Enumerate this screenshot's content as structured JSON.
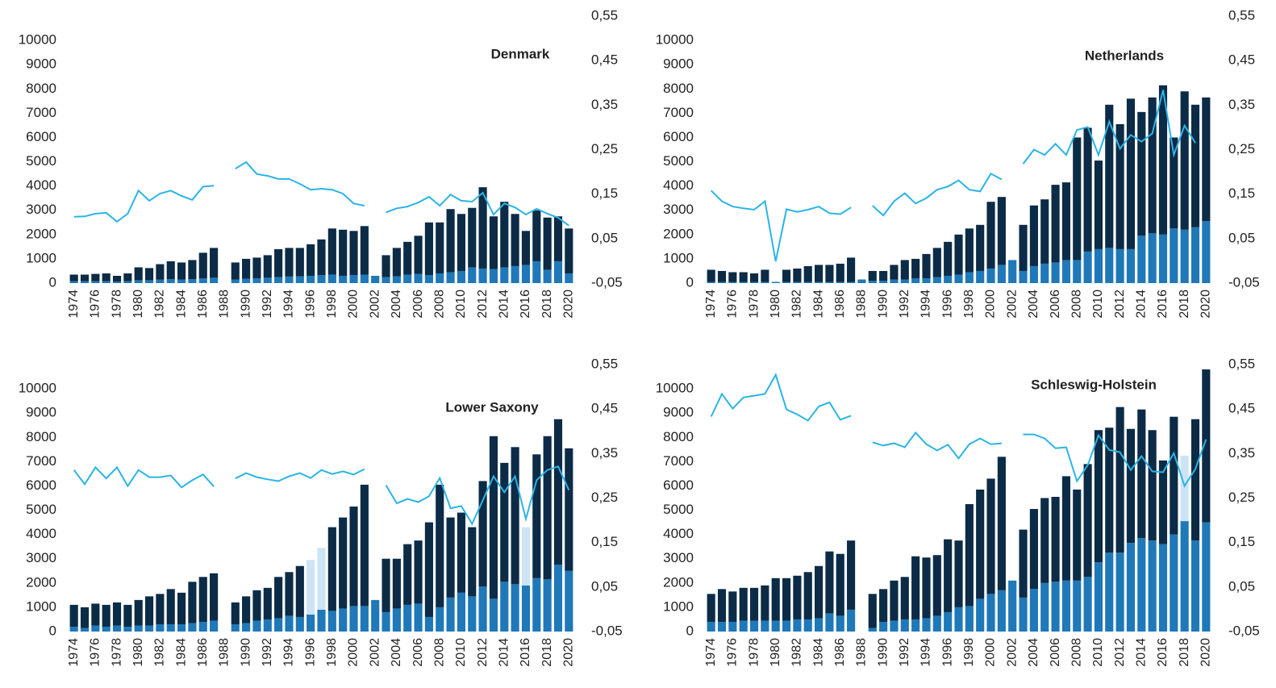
{
  "chart_data": [
    {
      "type": "bar",
      "title": "Denmark",
      "categories": [
        "1974",
        null,
        "1976",
        null,
        "1978",
        null,
        "1980",
        null,
        "1982",
        null,
        "1984",
        null,
        "1986",
        null,
        "1988",
        null,
        "1990",
        null,
        "1992",
        null,
        "1994",
        null,
        "1996",
        null,
        "1998",
        null,
        "2000",
        null,
        "2002",
        null,
        "2004",
        null,
        "2006",
        null,
        "2008",
        null,
        "2010",
        null,
        "2012",
        null,
        "2014",
        null,
        "2016",
        null,
        "2018",
        null,
        "2020"
      ],
      "ylim": [
        0,
        11000
      ],
      "yticks": [
        0,
        1000,
        2000,
        3000,
        4000,
        5000,
        6000,
        7000,
        8000,
        9000,
        10000
      ],
      "y2lim": [
        -0.05,
        0.55
      ],
      "y2ticks": [
        {
          "value": -0.05,
          "label": "-0,05"
        },
        {
          "value": 0.05,
          "label": "0,05"
        },
        {
          "value": 0.15,
          "label": "0,15"
        },
        {
          "value": 0.25,
          "label": "0,25"
        },
        {
          "value": 0.35,
          "label": "0,35"
        },
        {
          "value": 0.45,
          "label": "0,45"
        },
        {
          "value": 0.55,
          "label": "0,55"
        }
      ],
      "series": [
        {
          "color": "#1f78b8",
          "values": [
            80,
            80,
            80,
            80,
            60,
            80,
            120,
            120,
            140,
            160,
            150,
            160,
            200,
            220,
            null,
            150,
            180,
            200,
            220,
            250,
            270,
            280,
            300,
            330,
            350,
            300,
            330,
            350,
            300,
            250,
            280,
            350,
            380,
            330,
            400,
            450,
            500,
            650,
            600,
            580,
            650,
            700,
            750,
            900,
            550,
            900,
            400
          ]
        },
        {
          "color": "#0c2b46",
          "values": [
            270,
            270,
            300,
            320,
            240,
            320,
            530,
            500,
            640,
            740,
            700,
            790,
            1050,
            1230,
            null,
            700,
            820,
            850,
            930,
            1150,
            1180,
            1170,
            1300,
            1470,
            1900,
            1900,
            1820,
            2000,
            null,
            900,
            1170,
            1350,
            1570,
            2170,
            2100,
            2600,
            2350,
            2450,
            3350,
            2170,
            2700,
            2150,
            1400,
            2100,
            2150,
            1850,
            1850
          ]
        },
        {
          "type": "line",
          "axis": "y2",
          "color": "#2ab4e6",
          "values": [
            0.099,
            0.1,
            0.106,
            0.108,
            0.088,
            0.106,
            0.158,
            0.135,
            0.151,
            0.158,
            0.146,
            0.137,
            0.167,
            0.169,
            null,
            0.207,
            0.222,
            0.195,
            0.191,
            0.184,
            0.184,
            0.173,
            0.16,
            0.162,
            0.16,
            0.151,
            0.129,
            0.124,
            null,
            0.109,
            0.118,
            0.122,
            0.131,
            0.144,
            0.124,
            0.149,
            0.135,
            0.133,
            0.153,
            0.104,
            0.129,
            0.12,
            0.104,
            0.117,
            0.106,
            0.097,
            0.079
          ]
        }
      ]
    },
    {
      "type": "bar",
      "title": "Netherlands",
      "categories": [
        "1974",
        null,
        "1976",
        null,
        "1978",
        null,
        "1980",
        null,
        "1982",
        null,
        "1984",
        null,
        "1986",
        null,
        "1988",
        null,
        "1990",
        null,
        "1992",
        null,
        "1994",
        null,
        "1996",
        null,
        "1998",
        null,
        "2000",
        null,
        "2002",
        null,
        "2004",
        null,
        "2006",
        null,
        "2008",
        null,
        "2010",
        null,
        "2012",
        null,
        "2014",
        null,
        "2016",
        null,
        "2018",
        null,
        "2020"
      ],
      "ylim": [
        0,
        11000
      ],
      "yticks": [
        0,
        1000,
        2000,
        3000,
        4000,
        5000,
        6000,
        7000,
        8000,
        9000,
        10000
      ],
      "y2lim": [
        -0.05,
        0.55
      ],
      "y2ticks": [
        {
          "value": -0.05,
          "label": "-0,05"
        },
        {
          "value": 0.05,
          "label": "0,05"
        },
        {
          "value": 0.15,
          "label": "0,15"
        },
        {
          "value": 0.25,
          "label": "0,25"
        },
        {
          "value": 0.35,
          "label": "0,35"
        },
        {
          "value": 0.45,
          "label": "0,45"
        },
        {
          "value": 0.55,
          "label": "0,55"
        }
      ],
      "series": [
        {
          "color": "#1f78b8",
          "values": [
            50,
            50,
            50,
            50,
            50,
            50,
            50,
            50,
            50,
            50,
            50,
            50,
            50,
            50,
            150,
            100,
            100,
            150,
            150,
            200,
            200,
            250,
            300,
            350,
            450,
            500,
            600,
            750,
            950,
            500,
            700,
            800,
            850,
            950,
            950,
            1300,
            1400,
            1450,
            1400,
            1400,
            1950,
            2050,
            2000,
            2250,
            2200,
            2300,
            2550
          ]
        },
        {
          "color": "#0c2b46",
          "values": [
            500,
            450,
            400,
            400,
            350,
            500,
            null,
            500,
            550,
            650,
            700,
            700,
            750,
            1000,
            null,
            400,
            400,
            600,
            800,
            800,
            1000,
            1200,
            1400,
            1650,
            1800,
            1900,
            2750,
            2800,
            null,
            1900,
            2500,
            2650,
            3200,
            3200,
            5050,
            5100,
            3650,
            5900,
            5150,
            6200,
            5100,
            5600,
            6150,
            3750,
            5700,
            5050,
            5100
          ]
        },
        {
          "type": "line",
          "axis": "y2",
          "color": "#2ab4e6",
          "values": [
            0.158,
            0.134,
            0.122,
            0.118,
            0.115,
            0.134,
            -0.001,
            0.116,
            0.11,
            0.115,
            0.122,
            0.107,
            0.105,
            0.12,
            null,
            0.124,
            0.102,
            0.134,
            0.152,
            0.129,
            0.141,
            0.16,
            0.167,
            0.181,
            0.16,
            0.156,
            0.196,
            0.183,
            null,
            0.218,
            0.25,
            0.238,
            0.263,
            0.238,
            0.294,
            0.301,
            0.238,
            0.313,
            0.252,
            0.283,
            0.268,
            0.286,
            0.384,
            0.238,
            0.304,
            0.265,
            null
          ]
        }
      ]
    },
    {
      "type": "bar",
      "title": "Lower Saxony",
      "categories": [
        "1974",
        null,
        "1976",
        null,
        "1978",
        null,
        "1980",
        null,
        "1982",
        null,
        "1984",
        null,
        "1986",
        null,
        "1988",
        null,
        "1990",
        null,
        "1992",
        null,
        "1994",
        null,
        "1996",
        null,
        "1998",
        null,
        "2000",
        null,
        "2002",
        null,
        "2004",
        null,
        "2006",
        null,
        "2008",
        null,
        "2010",
        null,
        "2012",
        null,
        "2014",
        null,
        "2016",
        null,
        "2018",
        null,
        "2020"
      ],
      "ylim": [
        0,
        11000
      ],
      "yticks": [
        0,
        1000,
        2000,
        3000,
        4000,
        5000,
        6000,
        7000,
        8000,
        9000,
        10000
      ],
      "y2lim": [
        -0.05,
        0.55
      ],
      "y2ticks": [
        {
          "value": -0.05,
          "label": "-0,05"
        },
        {
          "value": 0.05,
          "label": "0,05"
        },
        {
          "value": 0.15,
          "label": "0,15"
        },
        {
          "value": 0.25,
          "label": "0,25"
        },
        {
          "value": 0.35,
          "label": "0,35"
        },
        {
          "value": 0.45,
          "label": "0,45"
        },
        {
          "value": 0.55,
          "label": "0,55"
        }
      ],
      "series": [
        {
          "color": "#1f78b8",
          "values": [
            200,
            150,
            250,
            200,
            250,
            200,
            250,
            250,
            300,
            300,
            300,
            350,
            400,
            450,
            null,
            300,
            350,
            450,
            500,
            550,
            650,
            600,
            700,
            900,
            850,
            950,
            1050,
            1050,
            1300,
            800,
            950,
            1100,
            1150,
            600,
            1000,
            1400,
            1600,
            1450,
            1850,
            1350,
            2050,
            1950,
            1900,
            2200,
            2150,
            2750,
            2500
          ]
        },
        {
          "color": "#0c2b46",
          "values": [
            900,
            850,
            900,
            900,
            950,
            900,
            1050,
            1200,
            1250,
            1450,
            1300,
            1700,
            1850,
            1950,
            null,
            900,
            1100,
            1250,
            1300,
            1700,
            1800,
            2100,
            null,
            null,
            3450,
            3750,
            4100,
            5000,
            null,
            2200,
            2050,
            2500,
            2600,
            3900,
            5050,
            3300,
            3300,
            2850,
            4350,
            6700,
            4900,
            5650,
            null,
            5100,
            5900,
            6000,
            5050
          ]
        },
        {
          "color": "#cde4f4",
          "values": [
            null,
            null,
            null,
            null,
            null,
            null,
            null,
            null,
            null,
            null,
            null,
            null,
            null,
            null,
            null,
            null,
            null,
            null,
            null,
            null,
            null,
            null,
            2250,
            2550,
            null,
            null,
            null,
            null,
            null,
            null,
            null,
            null,
            null,
            null,
            null,
            null,
            null,
            null,
            null,
            null,
            null,
            null,
            2400,
            null,
            null,
            null,
            null
          ]
        },
        {
          "type": "line",
          "axis": "y2",
          "color": "#2ab4e6",
          "values": [
            0.313,
            0.281,
            0.319,
            0.294,
            0.319,
            0.277,
            0.313,
            0.297,
            0.297,
            0.301,
            0.274,
            0.29,
            0.303,
            0.276,
            null,
            0.294,
            0.306,
            0.297,
            0.292,
            0.288,
            0.299,
            0.306,
            0.295,
            0.313,
            0.304,
            0.31,
            0.303,
            0.315,
            null,
            0.279,
            0.238,
            0.248,
            0.241,
            0.254,
            0.295,
            0.227,
            0.232,
            0.192,
            0.245,
            0.299,
            0.263,
            0.299,
            0.203,
            0.29,
            0.313,
            0.321,
            0.268
          ]
        }
      ]
    },
    {
      "type": "bar",
      "title": "Schleswig-Holstein",
      "categories": [
        "1974",
        null,
        "1976",
        null,
        "1978",
        null,
        "1980",
        null,
        "1982",
        null,
        "1984",
        null,
        "1986",
        null,
        "1988",
        null,
        "1990",
        null,
        "1992",
        null,
        "1994",
        null,
        "1996",
        null,
        "1998",
        null,
        "2000",
        null,
        "2002",
        null,
        "2004",
        null,
        "2006",
        null,
        "2008",
        null,
        "2010",
        null,
        "2012",
        null,
        "2014",
        null,
        "2016",
        null,
        "2018",
        null,
        "2020"
      ],
      "ylim": [
        0,
        11000
      ],
      "yticks": [
        0,
        1000,
        2000,
        3000,
        4000,
        5000,
        6000,
        7000,
        8000,
        9000,
        10000
      ],
      "y2lim": [
        -0.05,
        0.55
      ],
      "y2ticks": [
        {
          "value": -0.05,
          "label": "-0,05"
        },
        {
          "value": 0.05,
          "label": "0,05"
        },
        {
          "value": 0.15,
          "label": "0,15"
        },
        {
          "value": 0.25,
          "label": "0,25"
        },
        {
          "value": 0.35,
          "label": "0,35"
        },
        {
          "value": 0.45,
          "label": "0,45"
        },
        {
          "value": 0.55,
          "label": "0,55"
        }
      ],
      "series": [
        {
          "color": "#1f78b8",
          "values": [
            400,
            400,
            400,
            450,
            450,
            450,
            450,
            450,
            500,
            500,
            550,
            750,
            650,
            900,
            null,
            150,
            400,
            450,
            500,
            500,
            550,
            650,
            800,
            1000,
            1050,
            1350,
            1550,
            1700,
            2100,
            1400,
            1750,
            2000,
            2050,
            2100,
            2100,
            2250,
            2850,
            3250,
            3250,
            3650,
            3850,
            3750,
            3600,
            4000,
            4550,
            3750,
            4500
          ]
        },
        {
          "color": "#0c2b46",
          "values": [
            1150,
            1350,
            1250,
            1350,
            1350,
            1450,
            1750,
            1750,
            1800,
            1950,
            2150,
            2550,
            2550,
            2850,
            null,
            1400,
            1350,
            1650,
            1750,
            2600,
            2500,
            2500,
            3000,
            2750,
            4200,
            4500,
            4750,
            5500,
            null,
            2800,
            3300,
            3500,
            3500,
            4300,
            3750,
            4650,
            5450,
            5150,
            6000,
            4700,
            5300,
            4550,
            3450,
            4850,
            null,
            5000,
            6300
          ]
        },
        {
          "color": "#cde4f4",
          "values": [
            null,
            null,
            null,
            null,
            null,
            null,
            null,
            null,
            null,
            null,
            null,
            null,
            null,
            null,
            null,
            null,
            null,
            null,
            null,
            null,
            null,
            null,
            null,
            null,
            null,
            null,
            null,
            null,
            null,
            null,
            null,
            null,
            null,
            null,
            null,
            null,
            null,
            null,
            null,
            null,
            null,
            null,
            null,
            null,
            2700,
            null,
            null
          ]
        },
        {
          "type": "line",
          "axis": "y2",
          "color": "#2ab4e6",
          "values": [
            0.433,
            0.484,
            0.451,
            0.476,
            0.48,
            0.484,
            0.527,
            0.449,
            0.438,
            0.424,
            0.456,
            0.465,
            0.426,
            0.435,
            null,
            0.375,
            0.368,
            0.373,
            0.364,
            0.397,
            0.371,
            0.357,
            0.37,
            0.339,
            0.371,
            0.384,
            0.371,
            0.373,
            null,
            0.393,
            0.393,
            0.384,
            0.362,
            0.364,
            0.288,
            0.324,
            0.391,
            0.358,
            0.353,
            0.313,
            0.344,
            0.31,
            0.308,
            0.351,
            0.277,
            0.315,
            0.382
          ]
        }
      ]
    }
  ]
}
